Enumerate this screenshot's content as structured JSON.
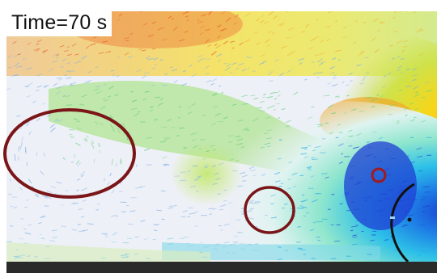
{
  "figure": {
    "time_label": "Time=70 s"
  },
  "colors": {
    "background": "#ffffff",
    "bottom_band": "#2a2a2a",
    "ellipse_stroke": "#7a1518",
    "field_low": "#e9edf6",
    "field_blue": "#1f3fd4",
    "field_cyan": "#1ab7e8",
    "field_green": "#5fd36a",
    "field_yellow": "#f4e514",
    "field_orange": "#f39a22",
    "field_red": "#e2411f",
    "body_outline": "#111111"
  },
  "annotations": [
    {
      "name": "large-vortex-ellipse"
    },
    {
      "name": "small-vortex-ellipse"
    },
    {
      "name": "near-body-circle"
    }
  ]
}
